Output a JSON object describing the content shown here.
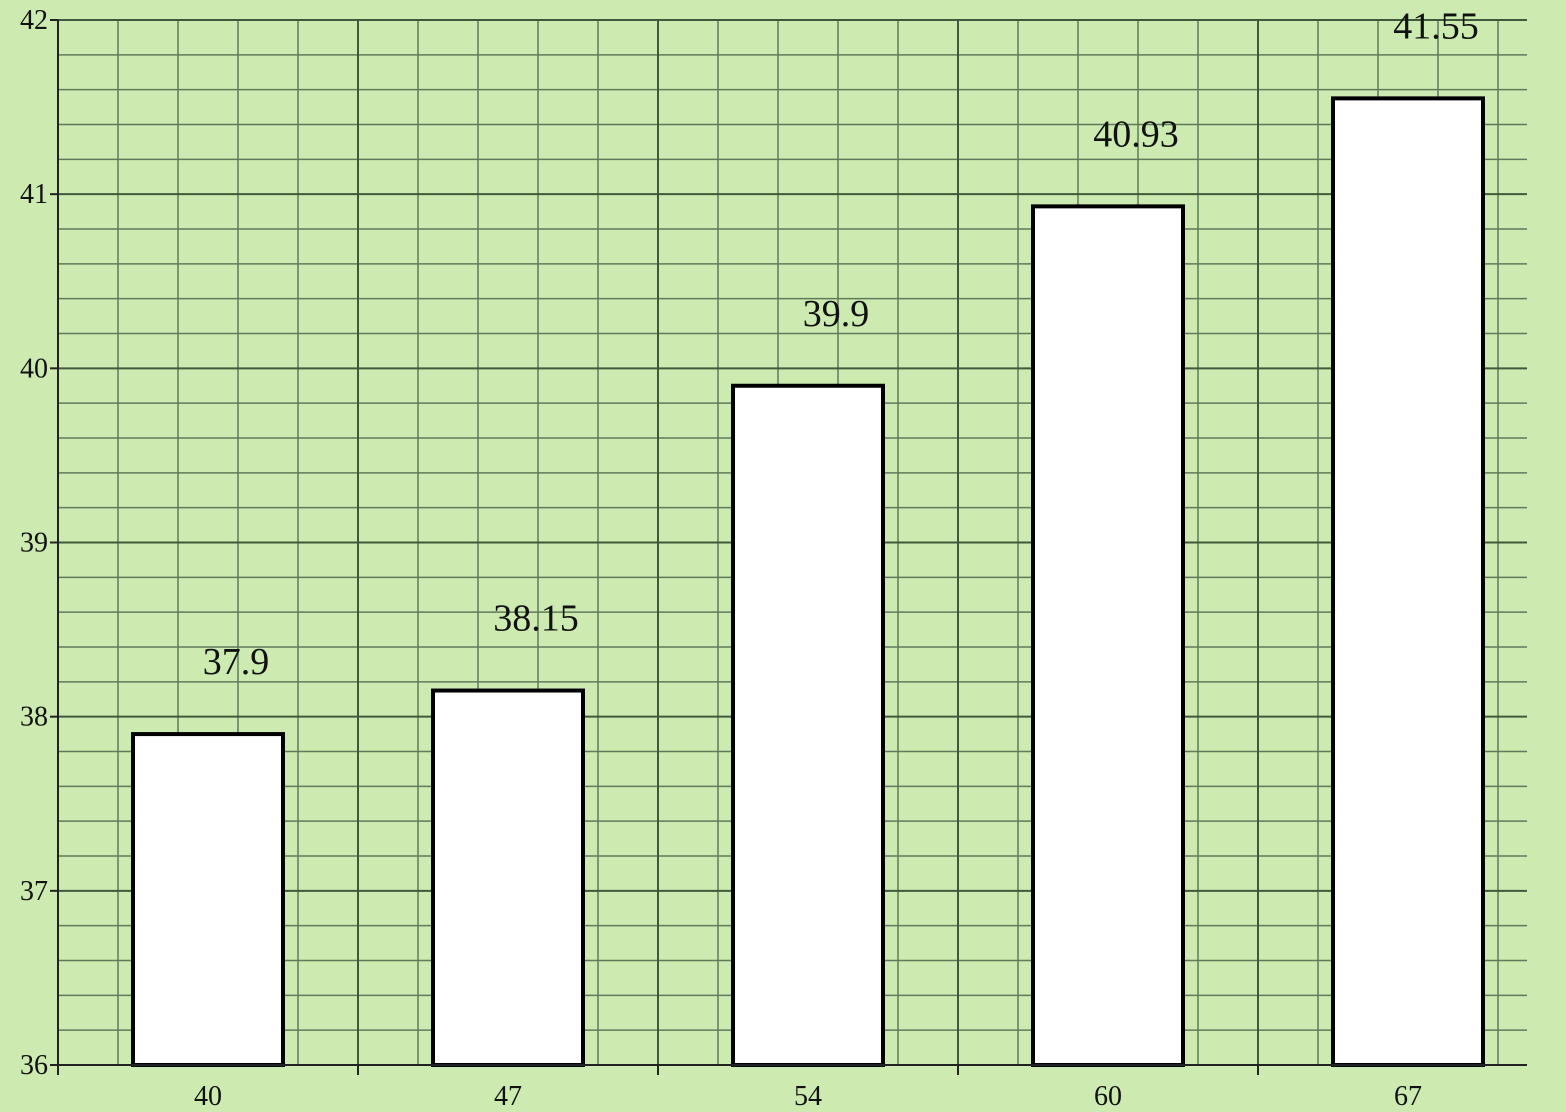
{
  "chart_data": {
    "type": "bar",
    "title": "",
    "xlabel": "",
    "ylabel": "",
    "categories": [
      "40",
      "47",
      "54",
      "60",
      "67"
    ],
    "values": [
      37.9,
      38.15,
      39.9,
      40.93,
      41.55
    ],
    "value_labels": [
      "37.9",
      "38.15",
      "39.9",
      "40.93",
      "41.55"
    ],
    "y_ticks": [
      "36",
      "37",
      "38",
      "39",
      "40",
      "41",
      "42"
    ],
    "ylim": [
      36,
      42
    ],
    "y_minor_step": 0.2,
    "x_minor_divisions": 5,
    "grid": true,
    "legend": "none",
    "colors": {
      "background": "#cdeab0",
      "grid_major": "#3f5a3a",
      "grid_minor": "#5f7a5a",
      "bar_fill": "#ffffff",
      "bar_stroke": "#000000",
      "axis": "#222222"
    }
  }
}
